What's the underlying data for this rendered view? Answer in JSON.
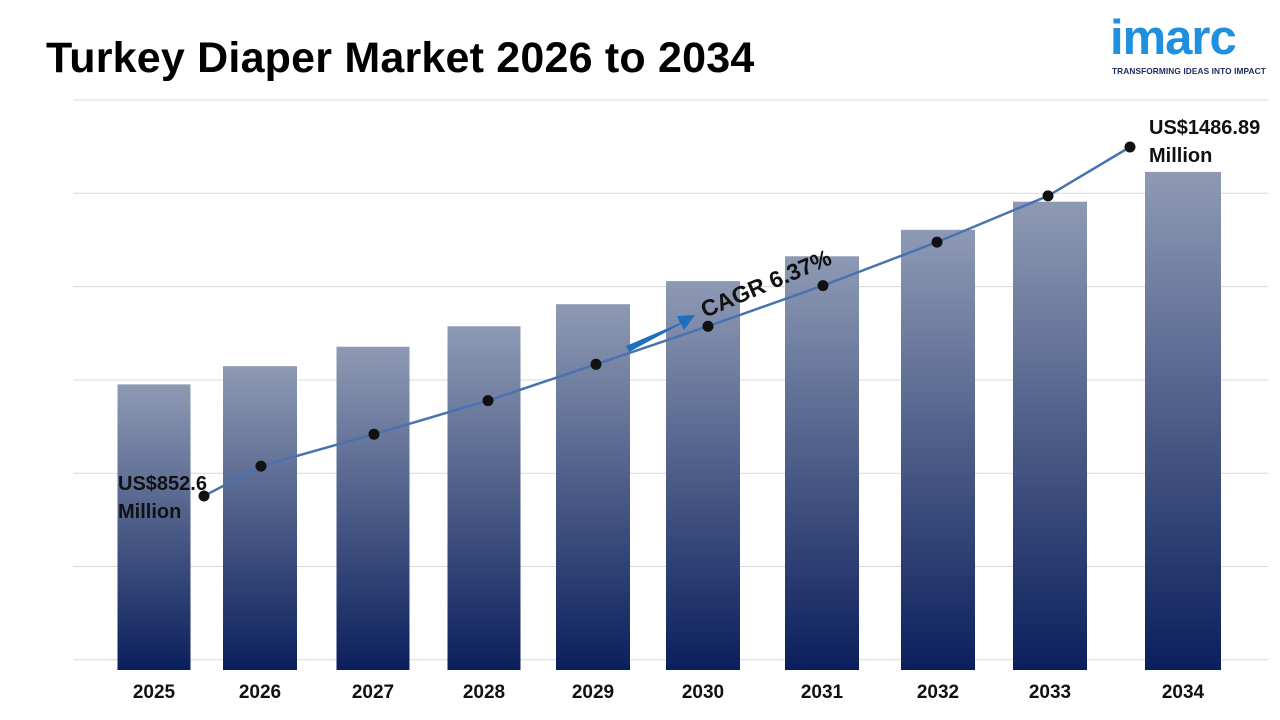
{
  "title": "Turkey Diaper Market 2026 to 2034",
  "logo": {
    "name": "imarc",
    "tagline": "TRANSFORMING IDEAS INTO IMPACT",
    "color": "#1f8fe0"
  },
  "chart_data": {
    "type": "bar",
    "title": "Turkey Diaper Market 2026 to 2034",
    "categories": [
      "2025",
      "2026",
      "2027",
      "2028",
      "2029",
      "2030",
      "2031",
      "2032",
      "2033",
      "2034"
    ],
    "series": [
      {
        "values": [
          852.6,
          907,
          965,
          1026,
          1092,
          1161,
          1235,
          1314,
          1398,
          1486.89
        ]
      }
    ],
    "line_overlay": true,
    "first_label": [
      "US$852.6",
      "Million"
    ],
    "last_label": [
      "US$1486.89",
      "Million"
    ],
    "annotation": "CAGR 6.37%",
    "ylim": [
      0,
      1600
    ],
    "grid": true,
    "colors": {
      "bar_top": "#8e9ab4",
      "bar_bottom": "#0b1f5c",
      "line": "#4a72b0",
      "marker": "#111111",
      "arrow": "#1f6fbf"
    }
  }
}
